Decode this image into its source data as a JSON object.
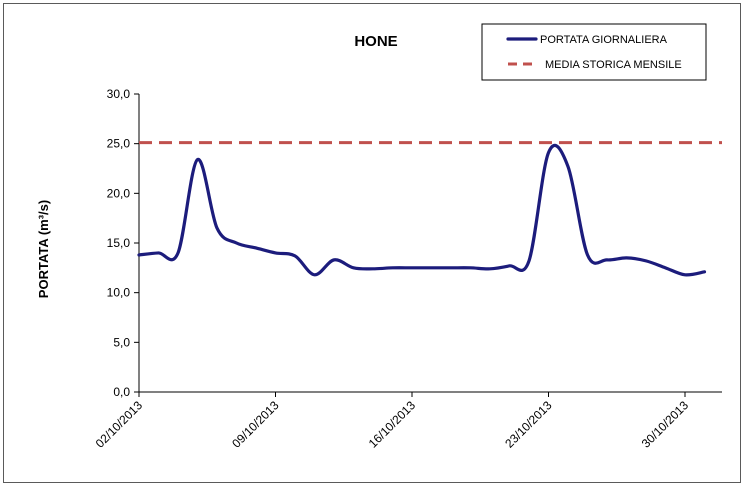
{
  "chart_data": {
    "type": "line",
    "title": "HONE",
    "xlabel": "",
    "ylabel": "PORTATA (m³/s)",
    "ylim": [
      0,
      30
    ],
    "y_ticks": [
      "0,0",
      "5,0",
      "10,0",
      "15,0",
      "20,0",
      "25,0",
      "30,0"
    ],
    "x_ticks": [
      "02/10/2013",
      "09/10/2013",
      "16/10/2013",
      "23/10/2013",
      "30/10/2013"
    ],
    "grid": false,
    "legend_position": "top-right",
    "series": [
      {
        "name": "PORTATA GIORNALIERA",
        "color": "#1c1c7c",
        "style": "solid",
        "x": [
          "02/10/2013",
          "03/10/2013",
          "04/10/2013",
          "05/10/2013",
          "06/10/2013",
          "07/10/2013",
          "08/10/2013",
          "09/10/2013",
          "10/10/2013",
          "11/10/2013",
          "12/10/2013",
          "13/10/2013",
          "14/10/2013",
          "15/10/2013",
          "16/10/2013",
          "17/10/2013",
          "18/10/2013",
          "19/10/2013",
          "20/10/2013",
          "21/10/2013",
          "22/10/2013",
          "23/10/2013",
          "24/10/2013",
          "25/10/2013",
          "26/10/2013",
          "27/10/2013",
          "28/10/2013",
          "29/10/2013",
          "30/10/2013",
          "31/10/2013"
        ],
        "values": [
          13.8,
          14.0,
          14.0,
          23.4,
          16.5,
          15.0,
          14.5,
          14.0,
          13.7,
          11.8,
          13.3,
          12.5,
          12.4,
          12.5,
          12.5,
          12.5,
          12.5,
          12.5,
          12.4,
          12.7,
          13.2,
          24.1,
          22.7,
          13.8,
          13.3,
          13.5,
          13.2,
          12.5,
          11.8,
          12.1
        ]
      },
      {
        "name": "MEDIA STORICA MENSILE",
        "color": "#c0504d",
        "style": "dashed",
        "x": [
          "02/10/2013",
          "31/10/2013"
        ],
        "values": [
          25.1,
          25.1
        ]
      }
    ]
  }
}
